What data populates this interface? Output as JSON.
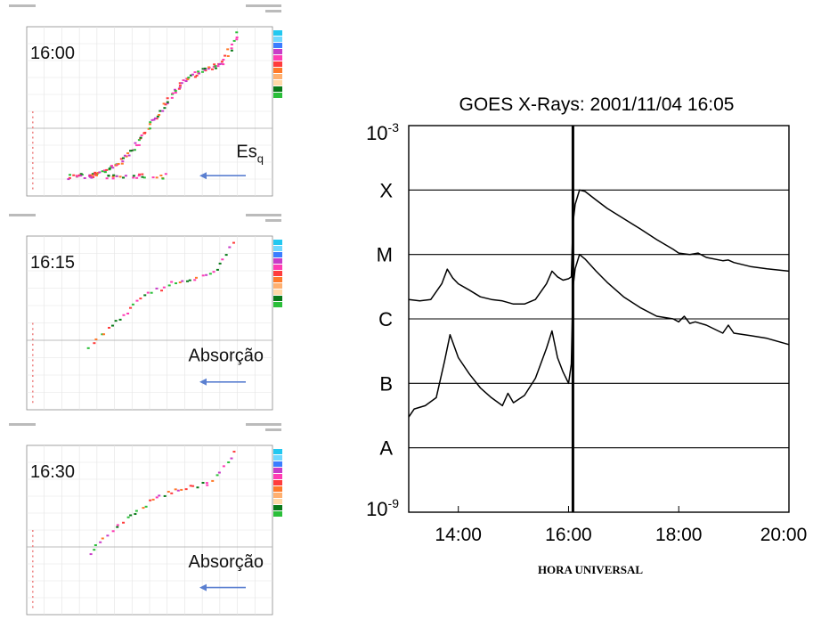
{
  "ionograms": [
    {
      "time": "16:00",
      "annotation": "Es",
      "annotation_sub": "q",
      "arrow_direction": "left",
      "legend_colors": [
        "#22c8f0",
        "#6fd8ff",
        "#3b7dff",
        "#c83cc8",
        "#ff3cb4",
        "#ff3c3c",
        "#ff7a2a",
        "#ffb070",
        "#ffd9a8",
        "#0a7a1a",
        "#2bbf3a"
      ]
    },
    {
      "time": "16:15",
      "annotation": "Absorção",
      "arrow_direction": "left",
      "legend_colors": [
        "#22c8f0",
        "#6fd8ff",
        "#3b7dff",
        "#c83cc8",
        "#ff3cb4",
        "#ff3c3c",
        "#ff7a2a",
        "#ffb070",
        "#ffd9a8",
        "#0a7a1a",
        "#2bbf3a"
      ]
    },
    {
      "time": "16:30",
      "annotation": "Absorção",
      "arrow_direction": "left",
      "legend_colors": [
        "#22c8f0",
        "#6fd8ff",
        "#3b7dff",
        "#c83cc8",
        "#ff3cb4",
        "#ff3c3c",
        "#ff7a2a",
        "#ffb070",
        "#ffd9a8",
        "#0a7a1a",
        "#2bbf3a"
      ]
    }
  ],
  "chart_data": {
    "type": "line",
    "title": "GOES X-Rays: 2001/11/04 16:05",
    "xlabel": "HORA UNIVERSAL",
    "ylabel": "",
    "xlim": [
      13.1,
      20.0
    ],
    "x_ticks": [
      14,
      16,
      18,
      20
    ],
    "x_tick_labels": [
      "14:00",
      "16:00",
      "18:00",
      "20:00"
    ],
    "y_scale": "log",
    "ylim": [
      1e-09,
      0.001
    ],
    "y_end_labels": {
      "top_base": "10",
      "top_exp": "-3",
      "bottom_base": "10",
      "bottom_exp": "-9"
    },
    "flare_classes": [
      {
        "label": "X",
        "value": 0.0001
      },
      {
        "label": "M",
        "value": 1e-05
      },
      {
        "label": "C",
        "value": 1e-06
      },
      {
        "label": "B",
        "value": 1e-07
      },
      {
        "label": "A",
        "value": 1e-08
      }
    ],
    "event_line_x": 16.08,
    "grid": false,
    "series": [
      {
        "x": [
          13.1,
          13.3,
          13.5,
          13.7,
          13.8,
          13.9,
          14.0,
          14.2,
          14.4,
          14.6,
          14.8,
          15.0,
          15.2,
          15.4,
          15.6,
          15.7,
          15.8,
          15.9,
          16.0,
          16.05,
          16.08,
          16.12,
          16.2,
          16.3,
          16.5,
          16.7,
          17.0,
          17.3,
          17.6,
          17.9,
          18.0,
          18.2,
          18.35,
          18.5,
          18.8,
          18.9,
          19.0,
          19.3,
          19.6,
          20.0
        ],
        "values": [
          2e-06,
          1.9e-06,
          2e-06,
          3.5e-06,
          5.9e-06,
          4.3e-06,
          3.5e-06,
          2.8e-06,
          2.2e-06,
          2e-06,
          1.9e-06,
          1.7e-06,
          1.7e-06,
          2e-06,
          3.5e-06,
          5.5e-06,
          4.5e-06,
          4e-06,
          4.2e-06,
          4.5e-06,
          3e-05,
          6e-05,
          0.0001,
          9.5e-05,
          7e-05,
          5.2e-05,
          3.6e-05,
          2.5e-05,
          1.7e-05,
          1.2e-05,
          1.05e-05,
          1e-05,
          1.05e-05,
          9e-06,
          8e-06,
          8.2e-06,
          7.5e-06,
          6.5e-06,
          6e-06,
          5.5e-06
        ]
      },
      {
        "x": [
          13.1,
          13.2,
          13.4,
          13.6,
          13.75,
          13.85,
          14.0,
          14.2,
          14.4,
          14.6,
          14.8,
          14.9,
          15.0,
          15.2,
          15.4,
          15.6,
          15.7,
          15.8,
          15.9,
          16.0,
          16.05,
          16.08,
          16.12,
          16.2,
          16.3,
          16.5,
          16.7,
          17.0,
          17.3,
          17.6,
          17.9,
          18.0,
          18.1,
          18.2,
          18.3,
          18.5,
          18.8,
          18.9,
          19.0,
          19.3,
          19.6,
          20.0
        ],
        "values": [
          3e-08,
          4e-08,
          4.5e-08,
          6e-08,
          2.2e-07,
          5.7e-07,
          2.5e-07,
          1.4e-07,
          8.5e-08,
          6e-08,
          4.5e-08,
          7e-08,
          5e-08,
          6.5e-08,
          1.2e-07,
          3.5e-07,
          6.5e-07,
          2.5e-07,
          1.5e-07,
          1e-07,
          2e-07,
          3e-06,
          6e-06,
          1e-05,
          8.5e-06,
          5.5e-06,
          3.7e-06,
          2.2e-06,
          1.5e-06,
          1.1e-06,
          1e-06,
          9e-07,
          1.1e-06,
          8.5e-07,
          9e-07,
          8e-07,
          6e-07,
          8e-07,
          6e-07,
          5.5e-07,
          5e-07,
          4e-07
        ]
      }
    ]
  }
}
